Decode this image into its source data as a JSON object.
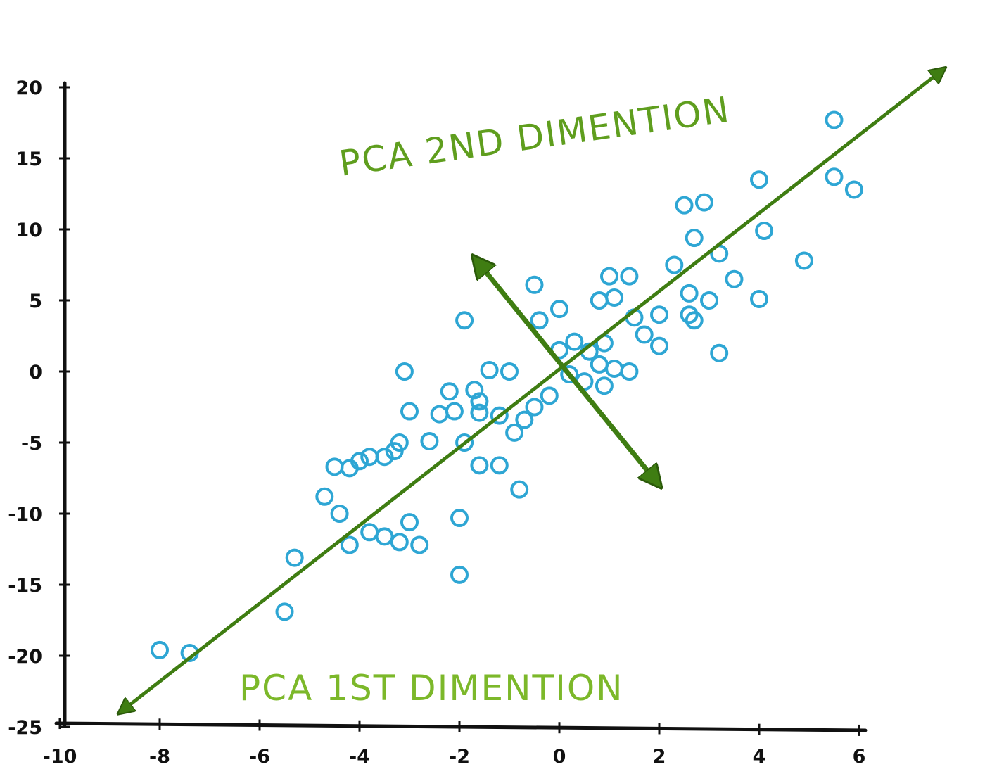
{
  "chart_data": {
    "type": "scatter",
    "title": "",
    "xlabel": "",
    "ylabel": "",
    "xlim": [
      -10,
      6
    ],
    "ylim": [
      -25,
      20
    ],
    "x_ticks": [
      -10,
      -8,
      -6,
      -4,
      -2,
      0,
      2,
      4,
      6
    ],
    "x_tick_labels": [
      "-10",
      "-8",
      "-6",
      "-4",
      "-2",
      "0",
      "2",
      "4",
      "6"
    ],
    "y_ticks": [
      20,
      15,
      10,
      5,
      0,
      -5,
      -10,
      -15,
      -20,
      -25
    ],
    "y_tick_labels": [
      "20",
      "15",
      "10",
      "5",
      "0",
      "-5",
      "-10",
      "-15",
      "-20",
      "-25"
    ],
    "grid": false,
    "point_color": "#2ea6d4",
    "arrow_color": "#3f7d12",
    "annotation_color_2nd": "#5f9e1e",
    "annotation_color_1st": "#7cb82a",
    "points": [
      {
        "x": 5.5,
        "y": 17.7
      },
      {
        "x": 5.5,
        "y": 13.7
      },
      {
        "x": 5.9,
        "y": 12.8
      },
      {
        "x": 4.0,
        "y": 13.5
      },
      {
        "x": 2.5,
        "y": 11.7
      },
      {
        "x": 2.9,
        "y": 11.9
      },
      {
        "x": 4.1,
        "y": 9.9
      },
      {
        "x": 2.7,
        "y": 9.4
      },
      {
        "x": 3.2,
        "y": 8.3
      },
      {
        "x": 4.9,
        "y": 7.8
      },
      {
        "x": 3.5,
        "y": 6.5
      },
      {
        "x": 4.0,
        "y": 5.1
      },
      {
        "x": 2.6,
        "y": 5.5
      },
      {
        "x": 3.0,
        "y": 5.0
      },
      {
        "x": 2.3,
        "y": 7.5
      },
      {
        "x": 2.7,
        "y": 3.6
      },
      {
        "x": 2.6,
        "y": 4.0
      },
      {
        "x": 3.2,
        "y": 1.3
      },
      {
        "x": 2.0,
        "y": 4.0
      },
      {
        "x": 1.7,
        "y": 2.6
      },
      {
        "x": 2.0,
        "y": 1.8
      },
      {
        "x": 1.5,
        "y": 3.8
      },
      {
        "x": 1.4,
        "y": 6.7
      },
      {
        "x": 1.0,
        "y": 6.7
      },
      {
        "x": 0.8,
        "y": 5.0
      },
      {
        "x": 1.1,
        "y": 5.2
      },
      {
        "x": 0.9,
        "y": 2.0
      },
      {
        "x": 0.6,
        "y": 1.4
      },
      {
        "x": 1.1,
        "y": 0.2
      },
      {
        "x": 0.8,
        "y": 0.5
      },
      {
        "x": 0.5,
        "y": -0.7
      },
      {
        "x": 1.4,
        "y": 0.0
      },
      {
        "x": 0.9,
        "y": -1.0
      },
      {
        "x": 0.3,
        "y": 2.1
      },
      {
        "x": 0.0,
        "y": 1.5
      },
      {
        "x": 0.0,
        "y": 4.4
      },
      {
        "x": -0.4,
        "y": 3.6
      },
      {
        "x": -0.5,
        "y": 6.1
      },
      {
        "x": -0.2,
        "y": -1.7
      },
      {
        "x": 0.2,
        "y": -0.2
      },
      {
        "x": -0.5,
        "y": -2.5
      },
      {
        "x": -0.7,
        "y": -3.4
      },
      {
        "x": -0.9,
        "y": -4.3
      },
      {
        "x": -1.2,
        "y": -3.1
      },
      {
        "x": -1.0,
        "y": 0.0
      },
      {
        "x": -1.4,
        "y": 0.1
      },
      {
        "x": -1.6,
        "y": -2.1
      },
      {
        "x": -1.7,
        "y": -1.3
      },
      {
        "x": -1.6,
        "y": -2.9
      },
      {
        "x": -2.1,
        "y": -2.8
      },
      {
        "x": -2.4,
        "y": -3.0
      },
      {
        "x": -2.2,
        "y": -1.4
      },
      {
        "x": -2.6,
        "y": -4.9
      },
      {
        "x": -1.9,
        "y": -5.0
      },
      {
        "x": -1.6,
        "y": -6.6
      },
      {
        "x": -1.2,
        "y": -6.6
      },
      {
        "x": -0.8,
        "y": -8.3
      },
      {
        "x": -1.9,
        "y": 3.6
      },
      {
        "x": -3.0,
        "y": -2.8
      },
      {
        "x": -3.2,
        "y": -5.0
      },
      {
        "x": -3.1,
        "y": 0.0
      },
      {
        "x": -3.8,
        "y": -6.0
      },
      {
        "x": -4.0,
        "y": -6.3
      },
      {
        "x": -4.2,
        "y": -6.8
      },
      {
        "x": -4.5,
        "y": -6.7
      },
      {
        "x": -3.5,
        "y": -6.0
      },
      {
        "x": -3.3,
        "y": -5.6
      },
      {
        "x": -4.7,
        "y": -8.8
      },
      {
        "x": -4.4,
        "y": -10.0
      },
      {
        "x": -4.2,
        "y": -12.2
      },
      {
        "x": -3.8,
        "y": -11.3
      },
      {
        "x": -3.5,
        "y": -11.6
      },
      {
        "x": -3.2,
        "y": -12.0
      },
      {
        "x": -3.0,
        "y": -10.6
      },
      {
        "x": -2.8,
        "y": -12.2
      },
      {
        "x": -2.0,
        "y": -10.3
      },
      {
        "x": -2.0,
        "y": -14.3
      },
      {
        "x": -5.3,
        "y": -13.1
      },
      {
        "x": -5.5,
        "y": -16.9
      },
      {
        "x": -8.0,
        "y": -19.6
      },
      {
        "x": -7.4,
        "y": -19.8
      }
    ],
    "pc1_arrow": {
      "from": [
        -8.8,
        -24.0
      ],
      "to": [
        7.7,
        21.3
      ]
    },
    "pc2_arrow": {
      "from": [
        -1.7,
        8.0
      ],
      "to": [
        2.0,
        -8.0
      ]
    }
  },
  "annotations": {
    "pc2_label": "PCA 2ND DIMENTION",
    "pc1_label": "PCA 1ST DIMENTION"
  }
}
